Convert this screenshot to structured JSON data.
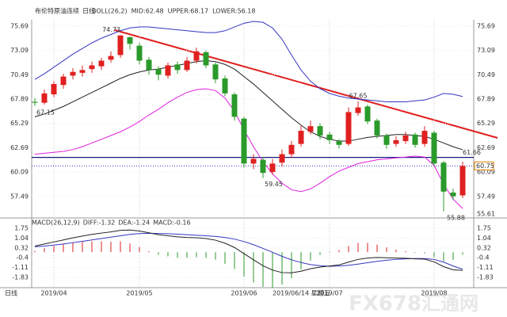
{
  "chart_data": {
    "type": "candlestick",
    "title": "布伦特原油连续",
    "period": "日线",
    "boll_header": [
      "BOLL(26,2)",
      "MID:62.48",
      "UPPER:68.17",
      "LOWER:56.18"
    ],
    "macd_header": [
      "MACD(26,12,9)",
      "DIFF:-1.32",
      "DEA:-1.24",
      "MACD:-0.16"
    ],
    "categories": [
      null,
      null,
      "2019/04",
      null,
      null,
      null,
      null,
      null,
      null,
      null,
      null,
      "2019/05",
      null,
      null,
      null,
      null,
      null,
      null,
      null,
      null,
      null,
      null,
      "2019/06",
      null,
      null,
      null,
      null,
      null,
      null,
      null,
      null,
      "2019/07",
      null,
      null,
      null,
      null,
      null,
      null,
      null,
      null,
      null,
      null,
      "2019/08",
      null,
      null,
      null
    ],
    "ohlc": [
      [
        67.6,
        68.0,
        67.15,
        67.5
      ],
      [
        67.5,
        68.9,
        67.3,
        68.5
      ],
      [
        68.4,
        69.8,
        68.1,
        69.5
      ],
      [
        69.4,
        70.6,
        69.0,
        70.3
      ],
      [
        70.4,
        71.2,
        70.0,
        70.8
      ],
      [
        70.7,
        71.5,
        70.3,
        71.0
      ],
      [
        71.1,
        71.9,
        70.7,
        71.5
      ],
      [
        71.4,
        72.3,
        71.0,
        72.0
      ],
      [
        72.1,
        73.0,
        71.8,
        72.5
      ],
      [
        72.6,
        74.73,
        72.3,
        74.7
      ],
      [
        74.5,
        74.6,
        73.2,
        73.8
      ],
      [
        73.6,
        73.9,
        71.6,
        72.0
      ],
      [
        72.1,
        72.4,
        70.5,
        71.0
      ],
      [
        71.1,
        71.4,
        69.9,
        70.5
      ],
      [
        70.4,
        71.8,
        70.1,
        71.5
      ],
      [
        71.6,
        71.9,
        70.6,
        71.0
      ],
      [
        71.0,
        72.4,
        70.8,
        72.0
      ],
      [
        72.0,
        73.4,
        71.7,
        73.0
      ],
      [
        72.9,
        73.1,
        71.2,
        71.5
      ],
      [
        71.6,
        71.8,
        69.6,
        70.0
      ],
      [
        70.1,
        70.4,
        68.2,
        68.5
      ],
      [
        68.4,
        68.6,
        65.6,
        66.0
      ],
      [
        65.8,
        66.0,
        60.6,
        61.0
      ],
      [
        61.0,
        62.0,
        60.4,
        61.5
      ],
      [
        61.4,
        61.7,
        59.45,
        60.0
      ],
      [
        60.1,
        61.5,
        59.8,
        61.0
      ],
      [
        61.1,
        62.5,
        60.7,
        62.0
      ],
      [
        62.0,
        63.4,
        61.6,
        63.0
      ],
      [
        63.1,
        65.0,
        62.8,
        64.5
      ],
      [
        64.4,
        65.6,
        64.1,
        65.0
      ],
      [
        65.0,
        65.3,
        63.6,
        64.0
      ],
      [
        64.1,
        64.4,
        63.1,
        63.5
      ],
      [
        63.4,
        63.6,
        62.6,
        63.0
      ],
      [
        63.1,
        67.0,
        62.9,
        66.5
      ],
      [
        66.4,
        67.65,
        66.1,
        67.0
      ],
      [
        67.1,
        67.3,
        65.2,
        65.5
      ],
      [
        65.6,
        65.8,
        63.7,
        64.0
      ],
      [
        64.0,
        64.2,
        62.6,
        63.0
      ],
      [
        63.1,
        63.9,
        62.8,
        63.5
      ],
      [
        63.4,
        64.4,
        63.1,
        64.0
      ],
      [
        64.1,
        64.3,
        62.7,
        63.0
      ],
      [
        63.1,
        65.0,
        62.8,
        64.5
      ],
      [
        64.3,
        64.5,
        60.7,
        61.0
      ],
      [
        61.1,
        61.3,
        55.88,
        58.0
      ],
      [
        57.9,
        58.3,
        57.1,
        57.5
      ],
      [
        57.6,
        61.2,
        57.3,
        60.75
      ]
    ],
    "mid": [
      66.0,
      66.3,
      66.7,
      67.1,
      67.6,
      68.1,
      68.6,
      69.1,
      69.6,
      70.1,
      70.5,
      70.8,
      71.0,
      71.1,
      71.3,
      71.5,
      71.7,
      71.9,
      72.0,
      71.9,
      71.6,
      71.1,
      70.3,
      69.5,
      68.6,
      67.7,
      66.8,
      65.9,
      65.1,
      64.4,
      63.9,
      63.6,
      63.4,
      63.4,
      63.6,
      63.8,
      63.9,
      64.0,
      64.1,
      64.1,
      64.0,
      63.9,
      63.6,
      63.2,
      62.8,
      62.48
    ],
    "upper": [
      70.0,
      70.6,
      71.3,
      72.0,
      72.7,
      73.3,
      73.9,
      74.4,
      74.8,
      75.2,
      75.5,
      75.6,
      75.6,
      75.5,
      75.4,
      75.3,
      75.2,
      75.1,
      75.0,
      75.0,
      75.2,
      75.6,
      76.0,
      76.2,
      76.1,
      75.5,
      74.3,
      72.6,
      71.0,
      69.8,
      69.0,
      68.5,
      68.2,
      68.0,
      67.9,
      67.8,
      67.7,
      67.6,
      67.6,
      67.6,
      67.7,
      67.8,
      68.1,
      68.5,
      68.4,
      68.17
    ],
    "lower": [
      62.0,
      62.1,
      62.2,
      62.3,
      62.5,
      62.8,
      63.2,
      63.6,
      64.0,
      64.4,
      64.9,
      65.5,
      66.2,
      66.8,
      67.5,
      68.1,
      68.6,
      68.9,
      69.0,
      68.8,
      68.0,
      66.6,
      64.6,
      62.8,
      61.2,
      59.9,
      58.9,
      58.2,
      58.0,
      58.3,
      58.9,
      59.6,
      60.2,
      60.6,
      61.0,
      61.2,
      61.4,
      61.5,
      61.6,
      61.7,
      61.8,
      61.7,
      60.8,
      58.8,
      57.2,
      56.18
    ],
    "diff": [
      0.45,
      0.6,
      0.75,
      0.9,
      1.05,
      1.18,
      1.3,
      1.4,
      1.48,
      1.6,
      1.62,
      1.55,
      1.42,
      1.28,
      1.2,
      1.12,
      1.08,
      1.06,
      1.0,
      0.88,
      0.66,
      0.35,
      -0.1,
      -0.55,
      -0.98,
      -1.3,
      -1.48,
      -1.5,
      -1.38,
      -1.2,
      -1.08,
      -1.0,
      -0.92,
      -0.72,
      -0.52,
      -0.42,
      -0.38,
      -0.4,
      -0.42,
      -0.44,
      -0.48,
      -0.5,
      -0.7,
      -1.05,
      -1.28,
      -1.32
    ],
    "dea": [
      0.4,
      0.45,
      0.52,
      0.6,
      0.7,
      0.8,
      0.9,
      1.0,
      1.1,
      1.2,
      1.3,
      1.36,
      1.38,
      1.37,
      1.35,
      1.32,
      1.28,
      1.24,
      1.2,
      1.15,
      1.08,
      0.96,
      0.78,
      0.55,
      0.28,
      0.0,
      -0.3,
      -0.55,
      -0.75,
      -0.9,
      -0.98,
      -1.02,
      -1.0,
      -0.95,
      -0.86,
      -0.76,
      -0.66,
      -0.58,
      -0.52,
      -0.48,
      -0.46,
      -0.46,
      -0.52,
      -0.72,
      -1.0,
      -1.24
    ],
    "hist": [
      0.1,
      0.3,
      0.46,
      0.6,
      0.7,
      0.76,
      0.8,
      0.8,
      0.76,
      0.8,
      0.64,
      0.38,
      0.08,
      -0.18,
      -0.3,
      -0.4,
      -0.4,
      -0.36,
      -0.4,
      -0.54,
      -0.84,
      -1.22,
      -1.76,
      -2.2,
      -2.52,
      -2.6,
      -2.36,
      -1.9,
      -1.26,
      -0.6,
      -0.2,
      0.04,
      0.16,
      0.46,
      0.68,
      0.68,
      0.56,
      0.36,
      0.2,
      0.08,
      -0.04,
      -0.08,
      -0.36,
      -0.66,
      -0.56,
      -0.16
    ],
    "ylim": [
      55.61,
      75.69
    ],
    "yticks": [
      75.69,
      73.09,
      70.49,
      67.89,
      65.29,
      62.69,
      60.09,
      57.49
    ],
    "macd_lim": [
      -1.83,
      1.75
    ],
    "macd_ticks": [
      1.75,
      1.04,
      0.32,
      -0.4,
      -1.11,
      -1.83
    ],
    "hline": 61.66,
    "last_price": 60.75,
    "cursor_date": "2019/06/14 星期五",
    "watermark": [
      "FX678",
      "汇通网"
    ],
    "colors": {
      "up": "#e02020",
      "down": "#2a9a2a",
      "mid": "#222222",
      "upper": "#3535c0",
      "lower": "#e020e0",
      "diff": "#222222",
      "dea": "#3535c0"
    }
  }
}
